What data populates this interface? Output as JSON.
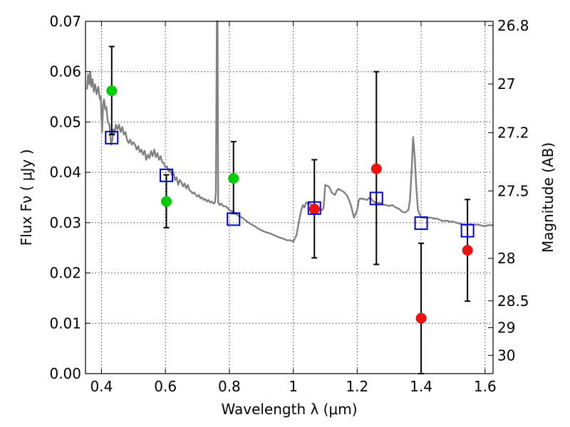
{
  "chart_data": {
    "type": "scatter",
    "title": "",
    "xlabel": "Wavelength  λ (μm)",
    "ylabel": "Flux  Fν  ( μJy )",
    "ylabel_right": "Magnitude (AB)",
    "xlim": [
      0.35,
      1.625
    ],
    "ylim": [
      0,
      0.07
    ],
    "grid": true,
    "x_ticks": [
      "0.4",
      "0.6",
      "0.8",
      "1",
      "1.2",
      "1.4",
      "1.6"
    ],
    "x_tick_values": [
      0.4,
      0.6,
      0.8,
      1.0,
      1.2,
      1.4,
      1.6
    ],
    "y_ticks": [
      "0.00",
      "0.01",
      "0.02",
      "0.03",
      "0.04",
      "0.05",
      "0.06",
      "0.07"
    ],
    "y_tick_values": [
      0,
      0.01,
      0.02,
      0.03,
      0.04,
      0.05,
      0.06,
      0.07
    ],
    "right_ticks": [
      "26.8",
      "27",
      "27.2",
      "27.5",
      "28",
      "28.5",
      "29",
      "30"
    ],
    "right_tick_values": [
      26.8,
      27.0,
      27.2,
      27.5,
      28.0,
      28.5,
      29.0,
      30.0
    ],
    "colors": {
      "model": "#808080",
      "green": "#00cc00",
      "red": "#ee1111",
      "square": "#0000cc",
      "errorbar": "#000000"
    },
    "series": [
      {
        "kind": "line",
        "points": [
          [
            0.355,
            0.0565
          ],
          [
            0.358,
            0.0595
          ],
          [
            0.362,
            0.0575
          ],
          [
            0.365,
            0.06
          ],
          [
            0.368,
            0.057
          ],
          [
            0.372,
            0.0585
          ],
          [
            0.376,
            0.056
          ],
          [
            0.38,
            0.0575
          ],
          [
            0.385,
            0.0555
          ],
          [
            0.39,
            0.057
          ],
          [
            0.395,
            0.0545
          ],
          [
            0.398,
            0.055
          ],
          [
            0.4,
            0.051
          ],
          [
            0.402,
            0.048
          ],
          [
            0.405,
            0.0535
          ],
          [
            0.408,
            0.0545
          ],
          [
            0.412,
            0.0525
          ],
          [
            0.415,
            0.053
          ],
          [
            0.42,
            0.05
          ],
          [
            0.425,
            0.0495
          ],
          [
            0.43,
            0.0455
          ],
          [
            0.434,
            0.0465
          ],
          [
            0.437,
            0.0485
          ],
          [
            0.44,
            0.0475
          ],
          [
            0.445,
            0.0495
          ],
          [
            0.45,
            0.0485
          ],
          [
            0.455,
            0.0495
          ],
          [
            0.46,
            0.048
          ],
          [
            0.465,
            0.049
          ],
          [
            0.47,
            0.0475
          ],
          [
            0.475,
            0.048
          ],
          [
            0.48,
            0.0465
          ],
          [
            0.485,
            0.0458
          ],
          [
            0.49,
            0.0465
          ],
          [
            0.495,
            0.0455
          ],
          [
            0.5,
            0.046
          ],
          [
            0.505,
            0.0455
          ],
          [
            0.51,
            0.0445
          ],
          [
            0.515,
            0.0452
          ],
          [
            0.52,
            0.044
          ],
          [
            0.525,
            0.0445
          ],
          [
            0.53,
            0.0435
          ],
          [
            0.535,
            0.0443
          ],
          [
            0.54,
            0.0425
          ],
          [
            0.545,
            0.0435
          ],
          [
            0.55,
            0.0428
          ],
          [
            0.555,
            0.0442
          ],
          [
            0.56,
            0.0432
          ],
          [
            0.565,
            0.0445
          ],
          [
            0.57,
            0.043
          ],
          [
            0.575,
            0.0438
          ],
          [
            0.58,
            0.0425
          ],
          [
            0.585,
            0.0432
          ],
          [
            0.59,
            0.042
          ],
          [
            0.595,
            0.0418
          ],
          [
            0.6,
            0.041
          ],
          [
            0.605,
            0.0412
          ],
          [
            0.61,
            0.0402
          ],
          [
            0.615,
            0.0405
          ],
          [
            0.62,
            0.0395
          ],
          [
            0.625,
            0.04
          ],
          [
            0.63,
            0.0385
          ],
          [
            0.635,
            0.039
          ],
          [
            0.64,
            0.0375
          ],
          [
            0.645,
            0.0385
          ],
          [
            0.65,
            0.038
          ],
          [
            0.655,
            0.0372
          ],
          [
            0.66,
            0.0378
          ],
          [
            0.665,
            0.0368
          ],
          [
            0.67,
            0.0375
          ],
          [
            0.675,
            0.0365
          ],
          [
            0.68,
            0.0362
          ],
          [
            0.685,
            0.0358
          ],
          [
            0.69,
            0.036
          ],
          [
            0.695,
            0.0355
          ],
          [
            0.7,
            0.0352
          ],
          [
            0.705,
            0.0355
          ],
          [
            0.71,
            0.0348
          ],
          [
            0.715,
            0.035
          ],
          [
            0.72,
            0.0345
          ],
          [
            0.725,
            0.0347
          ],
          [
            0.73,
            0.0342
          ],
          [
            0.735,
            0.0345
          ],
          [
            0.74,
            0.034
          ],
          [
            0.745,
            0.0342
          ],
          [
            0.75,
            0.0338
          ],
          [
            0.755,
            0.034
          ],
          [
            0.758,
            0.036
          ],
          [
            0.761,
            0.07
          ],
          [
            0.763,
            0.07
          ],
          [
            0.765,
            0.034
          ],
          [
            0.77,
            0.0335
          ],
          [
            0.775,
            0.0338
          ],
          [
            0.78,
            0.0333
          ],
          [
            0.79,
            0.0332
          ],
          [
            0.8,
            0.0325
          ],
          [
            0.81,
            0.0322
          ],
          [
            0.82,
            0.0318
          ],
          [
            0.83,
            0.0313
          ],
          [
            0.84,
            0.031
          ],
          [
            0.85,
            0.0305
          ],
          [
            0.86,
            0.03
          ],
          [
            0.87,
            0.0296
          ],
          [
            0.88,
            0.0293
          ],
          [
            0.89,
            0.0288
          ],
          [
            0.9,
            0.0285
          ],
          [
            0.91,
            0.0282
          ],
          [
            0.92,
            0.028
          ],
          [
            0.93,
            0.0278
          ],
          [
            0.94,
            0.0275
          ],
          [
            0.95,
            0.0272
          ],
          [
            0.96,
            0.027
          ],
          [
            0.97,
            0.0268
          ],
          [
            0.98,
            0.0265
          ],
          [
            0.99,
            0.0265
          ],
          [
            1.0,
            0.0262
          ],
          [
            1.01,
            0.0275
          ],
          [
            1.02,
            0.031
          ],
          [
            1.025,
            0.0325
          ],
          [
            1.03,
            0.0335
          ],
          [
            1.035,
            0.033
          ],
          [
            1.04,
            0.034
          ],
          [
            1.05,
            0.0338
          ],
          [
            1.06,
            0.0335
          ],
          [
            1.07,
            0.033
          ],
          [
            1.08,
            0.0328
          ],
          [
            1.09,
            0.0325
          ],
          [
            1.095,
            0.033
          ],
          [
            1.1,
            0.0375
          ],
          [
            1.11,
            0.0372
          ],
          [
            1.115,
            0.0368
          ],
          [
            1.12,
            0.036
          ],
          [
            1.13,
            0.0355
          ],
          [
            1.135,
            0.0362
          ],
          [
            1.14,
            0.0367
          ],
          [
            1.15,
            0.0364
          ],
          [
            1.16,
            0.036
          ],
          [
            1.17,
            0.0352
          ],
          [
            1.18,
            0.0335
          ],
          [
            1.19,
            0.031
          ],
          [
            1.2,
            0.0325
          ],
          [
            1.205,
            0.0345
          ],
          [
            1.21,
            0.0348
          ],
          [
            1.22,
            0.0347
          ],
          [
            1.23,
            0.0345
          ],
          [
            1.24,
            0.035
          ],
          [
            1.25,
            0.0343
          ],
          [
            1.26,
            0.0338
          ],
          [
            1.27,
            0.034
          ],
          [
            1.28,
            0.0336
          ],
          [
            1.29,
            0.0335
          ],
          [
            1.3,
            0.0333
          ],
          [
            1.31,
            0.0335
          ],
          [
            1.32,
            0.033
          ],
          [
            1.33,
            0.0328
          ],
          [
            1.34,
            0.0322
          ],
          [
            1.35,
            0.032
          ],
          [
            1.36,
            0.0325
          ],
          [
            1.365,
            0.0345
          ],
          [
            1.37,
            0.04
          ],
          [
            1.375,
            0.047
          ],
          [
            1.38,
            0.043
          ],
          [
            1.385,
            0.037
          ],
          [
            1.39,
            0.0325
          ],
          [
            1.4,
            0.031
          ],
          [
            1.41,
            0.031
          ],
          [
            1.42,
            0.031
          ],
          [
            1.43,
            0.031
          ],
          [
            1.44,
            0.0308
          ],
          [
            1.45,
            0.0308
          ],
          [
            1.46,
            0.0305
          ],
          [
            1.47,
            0.0303
          ],
          [
            1.48,
            0.0304
          ],
          [
            1.49,
            0.0302
          ],
          [
            1.5,
            0.0302
          ],
          [
            1.51,
            0.03
          ],
          [
            1.52,
            0.0298
          ],
          [
            1.53,
            0.0297
          ],
          [
            1.54,
            0.0295
          ],
          [
            1.55,
            0.0297
          ],
          [
            1.56,
            0.0296
          ],
          [
            1.57,
            0.0296
          ],
          [
            1.58,
            0.0296
          ],
          [
            1.59,
            0.0294
          ],
          [
            1.6,
            0.0293
          ],
          [
            1.61,
            0.0295
          ],
          [
            1.625,
            0.0295
          ]
        ]
      },
      {
        "kind": "points",
        "marker": "circle",
        "color": "green",
        "points": [
          {
            "x": 0.432,
            "y": 0.0562
          },
          {
            "x": 0.603,
            "y": 0.0342
          },
          {
            "x": 0.813,
            "y": 0.0388
          }
        ]
      },
      {
        "kind": "points",
        "marker": "circle",
        "color": "red",
        "points": [
          {
            "x": 1.066,
            "y": 0.0327
          },
          {
            "x": 1.26,
            "y": 0.0407
          },
          {
            "x": 1.4,
            "y": 0.011
          },
          {
            "x": 1.545,
            "y": 0.0245
          }
        ]
      },
      {
        "kind": "points",
        "marker": "square",
        "color": "square",
        "points": [
          {
            "x": 0.432,
            "y": 0.0469
          },
          {
            "x": 0.603,
            "y": 0.0394
          },
          {
            "x": 0.813,
            "y": 0.0307
          },
          {
            "x": 1.066,
            "y": 0.0329
          },
          {
            "x": 1.26,
            "y": 0.0348
          },
          {
            "x": 1.4,
            "y": 0.0299
          },
          {
            "x": 1.545,
            "y": 0.0284
          }
        ]
      }
    ],
    "error_bars": [
      {
        "x": 0.432,
        "low": 0.0475,
        "high": 0.065
      },
      {
        "x": 0.603,
        "low": 0.029,
        "high": 0.0395
      },
      {
        "x": 0.813,
        "low": 0.0318,
        "high": 0.0461
      },
      {
        "x": 1.066,
        "low": 0.023,
        "high": 0.0425
      },
      {
        "x": 1.26,
        "low": 0.0217,
        "high": 0.06
      },
      {
        "x": 1.4,
        "low": 0.0,
        "high": 0.0259
      },
      {
        "x": 1.545,
        "low": 0.0144,
        "high": 0.0346
      }
    ]
  }
}
